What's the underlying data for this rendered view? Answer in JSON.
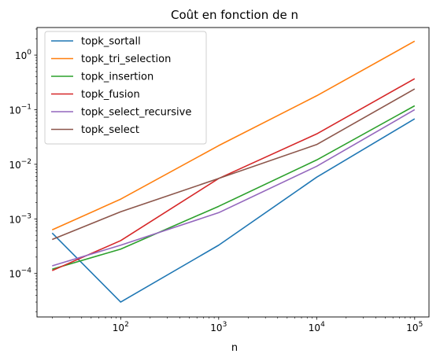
{
  "chart_data": {
    "type": "line",
    "title": "Coût en fonction de n",
    "xlabel": "n",
    "ylabel": "",
    "xscale": "log",
    "yscale": "log",
    "xlim": [
      14,
      140000
    ],
    "ylim": [
      1.6e-05,
      3.2
    ],
    "grid": false,
    "legend_position": "top-left",
    "x": [
      20,
      100,
      1000,
      10000,
      100000
    ],
    "x_ticks": [
      {
        "value": 100,
        "base": "10",
        "exp": "2"
      },
      {
        "value": 1000,
        "base": "10",
        "exp": "3"
      },
      {
        "value": 10000,
        "base": "10",
        "exp": "4"
      },
      {
        "value": 100000,
        "base": "10",
        "exp": "5"
      }
    ],
    "y_ticks": [
      {
        "value": 0.0001,
        "base": "10",
        "exp": "−4"
      },
      {
        "value": 0.001,
        "base": "10",
        "exp": "−3"
      },
      {
        "value": 0.01,
        "base": "10",
        "exp": "−2"
      },
      {
        "value": 0.1,
        "base": "10",
        "exp": "−1"
      },
      {
        "value": 1,
        "base": "10",
        "exp": "0"
      }
    ],
    "series": [
      {
        "name": "topk_sortall",
        "color": "#1f77b4",
        "values": [
          0.00055,
          3e-05,
          0.00033,
          0.0058,
          0.068
        ]
      },
      {
        "name": "topk_tri_selection",
        "color": "#ff7f0e",
        "values": [
          0.00063,
          0.0023,
          0.022,
          0.18,
          1.8
        ]
      },
      {
        "name": "topk_insertion",
        "color": "#2ca02c",
        "values": [
          0.00012,
          0.00028,
          0.0017,
          0.012,
          0.118
        ]
      },
      {
        "name": "topk_fusion",
        "color": "#d62728",
        "values": [
          0.000113,
          0.0004,
          0.0055,
          0.036,
          0.37
        ]
      },
      {
        "name": "topk_select_recursive",
        "color": "#9467bd",
        "values": [
          0.000138,
          0.00033,
          0.0013,
          0.0092,
          0.1
        ]
      },
      {
        "name": "topk_select",
        "color": "#8c564b",
        "values": [
          0.00042,
          0.00135,
          0.0055,
          0.023,
          0.24
        ]
      }
    ]
  }
}
